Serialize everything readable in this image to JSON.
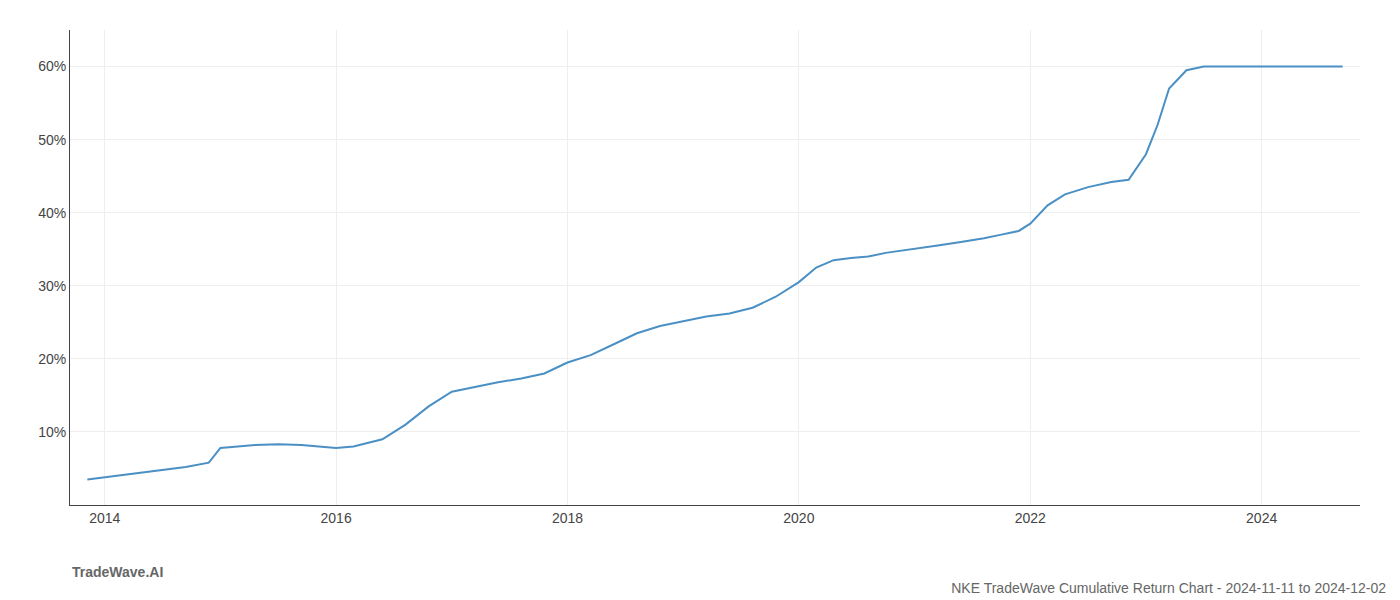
{
  "chart_data": {
    "type": "line",
    "title": "NKE TradeWave Cumulative Return Chart - 2024-11-11 to 2024-12-02",
    "annotations": [
      "TradeWave.AI"
    ],
    "color": "#4a90c4",
    "grid": true,
    "x": [
      2013.85,
      2014.0,
      2014.15,
      2014.3,
      2014.5,
      2014.7,
      2014.9,
      2015.0,
      2015.15,
      2015.3,
      2015.5,
      2015.7,
      2015.85,
      2016.0,
      2016.15,
      2016.4,
      2016.6,
      2016.8,
      2017.0,
      2017.2,
      2017.4,
      2017.6,
      2017.8,
      2018.0,
      2018.2,
      2018.4,
      2018.6,
      2018.8,
      2019.0,
      2019.2,
      2019.4,
      2019.6,
      2019.8,
      2020.0,
      2020.15,
      2020.3,
      2020.45,
      2020.6,
      2020.75,
      2020.9,
      2021.05,
      2021.2,
      2021.4,
      2021.6,
      2021.75,
      2021.9,
      2022.0,
      2022.15,
      2022.3,
      2022.5,
      2022.7,
      2022.85,
      2023.0,
      2023.1,
      2023.2,
      2023.35,
      2023.5,
      2023.65,
      2023.8,
      2024.0,
      2024.2,
      2024.5,
      2024.7
    ],
    "values": [
      3.5,
      3.8,
      4.2,
      4.5,
      4.8,
      5.2,
      5.8,
      7.8,
      8.0,
      8.2,
      8.3,
      8.2,
      8.0,
      7.8,
      8.0,
      9.0,
      11.0,
      13.5,
      15.5,
      16.2,
      16.8,
      17.3,
      18.0,
      19.5,
      20.5,
      22.0,
      23.5,
      24.5,
      25.2,
      25.8,
      26.2,
      27.0,
      28.5,
      30.5,
      32.5,
      33.5,
      33.8,
      34.0,
      34.5,
      34.8,
      35.2,
      35.5,
      36.0,
      36.5,
      37.0,
      37.5,
      38.5,
      41.0,
      42.5,
      43.5,
      44.2,
      44.5,
      48.0,
      52.0,
      57.0,
      59.5,
      60.0,
      60.0,
      60.0,
      60.0,
      60.0,
      60.0,
      60.0
    ],
    "xlim": [
      2013.7,
      2024.85
    ],
    "ylim": [
      0,
      65
    ],
    "xticks": [
      2014,
      2016,
      2018,
      2020,
      2022,
      2024
    ],
    "yticks": [
      {
        "value": 10,
        "label": "10%"
      },
      {
        "value": 20,
        "label": "20%"
      },
      {
        "value": 30,
        "label": "30%"
      },
      {
        "value": 40,
        "label": "40%"
      },
      {
        "value": 50,
        "label": "50%"
      },
      {
        "value": 60,
        "label": "60%"
      }
    ]
  }
}
